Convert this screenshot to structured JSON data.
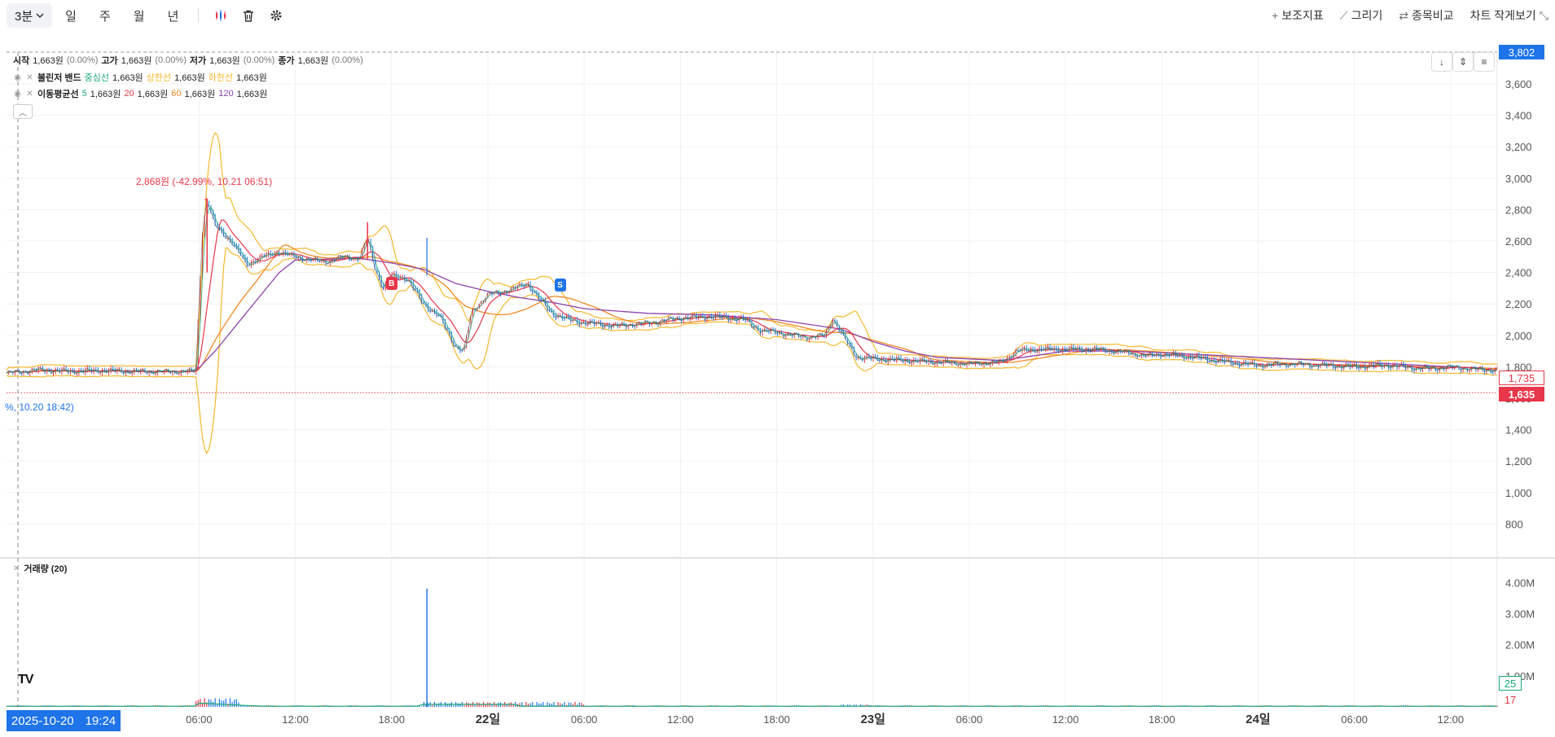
{
  "toolbar": {
    "interval": "3분",
    "periods": [
      "일",
      "주",
      "월",
      "년"
    ],
    "actions": [
      {
        "label": "보조지표",
        "glyph": "+"
      },
      {
        "label": "그리기",
        "glyph": "⟋"
      },
      {
        "label": "종목비교",
        "glyph": "⇄"
      },
      {
        "label": "차트 작게보기",
        "glyph": "⤡"
      }
    ]
  },
  "legend": {
    "ohlc": [
      {
        "k": "시작",
        "v": "1,663원",
        "p": "(0.00%)"
      },
      {
        "k": "고가",
        "v": "1,663원",
        "p": "(0.00%)"
      },
      {
        "k": "저가",
        "v": "1,663원",
        "p": "(0.00%)"
      },
      {
        "k": "종가",
        "v": "1,663원",
        "p": "(0.00%)"
      }
    ],
    "bollinger": {
      "name": "볼린저 밴드",
      "items": [
        {
          "k": "중심선",
          "v": "1,663원",
          "color": "#19a974"
        },
        {
          "k": "상한선",
          "v": "1,663원",
          "color": "#f5b82e"
        },
        {
          "k": "하한선",
          "v": "1,663원",
          "color": "#f5b82e"
        }
      ]
    },
    "ma": {
      "name": "이동평균선",
      "items": [
        {
          "k": "5",
          "v": "1,663원",
          "color": "#19a974"
        },
        {
          "k": "20",
          "v": "1,663원",
          "color": "#e8364a"
        },
        {
          "k": "60",
          "v": "1,663원",
          "color": "#f08a24"
        },
        {
          "k": "120",
          "v": "1,663원",
          "color": "#8e44ad"
        }
      ]
    }
  },
  "annotations": {
    "max_label": "2,868원 (-42.99%, 10.21 06:51)",
    "min_label": "%, 10.20 18:42)",
    "buy_tag": "B",
    "sell_tag": "S"
  },
  "volume_label": "거래량 (20)",
  "time_badge": {
    "date": "2025-10-20",
    "time": "19:24"
  },
  "logo_text": "TV",
  "colors": {
    "up": "#e8364a",
    "down": "#1e74e8",
    "bb": "#f5b82e",
    "ma5": "#19a974",
    "ma20": "#e8364a",
    "ma60": "#f08a24",
    "ma120": "#8e44ad",
    "vol_ma": "#19a974"
  },
  "chart_data": {
    "type": "line",
    "price_axis": {
      "ticks": [
        800,
        1000,
        1200,
        1400,
        1600,
        1800,
        2000,
        2200,
        2400,
        2600,
        2800,
        3000,
        3200,
        3400,
        3600
      ],
      "range": [
        600,
        3802
      ]
    },
    "volume_axis": {
      "ticks": [
        "1.00M",
        "2.00M",
        "3.00M",
        "4.00M"
      ],
      "range": [
        0,
        4.4
      ]
    },
    "x_axis": {
      "range": [
        "10.20 18:00",
        "10.24 15:00"
      ],
      "ticks": [
        {
          "t": 12,
          "label": "06:00",
          "bold": false
        },
        {
          "t": 18,
          "label": "12:00",
          "bold": false
        },
        {
          "t": 24,
          "label": "18:00",
          "bold": false
        },
        {
          "t": 30,
          "label": "22일",
          "bold": true
        },
        {
          "t": 36,
          "label": "06:00",
          "bold": false
        },
        {
          "t": 42,
          "label": "12:00",
          "bold": false
        },
        {
          "t": 48,
          "label": "18:00",
          "bold": false
        },
        {
          "t": 54,
          "label": "23일",
          "bold": true
        },
        {
          "t": 60,
          "label": "06:00",
          "bold": false
        },
        {
          "t": 66,
          "label": "12:00",
          "bold": false
        },
        {
          "t": 72,
          "label": "18:00",
          "bold": false
        },
        {
          "t": 78,
          "label": "24일",
          "bold": true
        },
        {
          "t": 84,
          "label": "06:00",
          "bold": false
        },
        {
          "t": 90,
          "label": "12:00",
          "bold": false
        }
      ]
    },
    "price_line": [
      [
        0,
        1760
      ],
      [
        1,
        1770
      ],
      [
        2,
        1780
      ],
      [
        4,
        1770
      ],
      [
        6,
        1775
      ],
      [
        8,
        1770
      ],
      [
        10,
        1770
      ],
      [
        11.8,
        1772
      ],
      [
        12.2,
        2650
      ],
      [
        12.5,
        2860
      ],
      [
        13,
        2700
      ],
      [
        14,
        2600
      ],
      [
        15,
        2450
      ],
      [
        16,
        2500
      ],
      [
        17,
        2530
      ],
      [
        18,
        2500
      ],
      [
        19,
        2480
      ],
      [
        20,
        2470
      ],
      [
        21,
        2500
      ],
      [
        22,
        2490
      ],
      [
        22.5,
        2620
      ],
      [
        23,
        2420
      ],
      [
        23.5,
        2300
      ],
      [
        24,
        2380
      ],
      [
        25,
        2360
      ],
      [
        26,
        2200
      ],
      [
        27,
        2120
      ],
      [
        28,
        1930
      ],
      [
        28.5,
        1900
      ],
      [
        29,
        2150
      ],
      [
        30,
        2260
      ],
      [
        31,
        2280
      ],
      [
        32,
        2310
      ],
      [
        32.5,
        2330
      ],
      [
        33,
        2260
      ],
      [
        34,
        2140
      ],
      [
        35,
        2100
      ],
      [
        36,
        2080
      ],
      [
        38,
        2060
      ],
      [
        40,
        2080
      ],
      [
        42,
        2110
      ],
      [
        44,
        2120
      ],
      [
        46,
        2100
      ],
      [
        47,
        2030
      ],
      [
        48,
        2020
      ],
      [
        49,
        2000
      ],
      [
        50,
        1990
      ],
      [
        51,
        2000
      ],
      [
        51.5,
        2110
      ],
      [
        52,
        2020
      ],
      [
        53,
        1860
      ],
      [
        54,
        1850
      ],
      [
        56,
        1840
      ],
      [
        58,
        1830
      ],
      [
        60,
        1820
      ],
      [
        62,
        1830
      ],
      [
        63,
        1900
      ],
      [
        64,
        1910
      ],
      [
        66,
        1910
      ],
      [
        68,
        1910
      ],
      [
        70,
        1890
      ],
      [
        71,
        1870
      ],
      [
        72,
        1880
      ],
      [
        74,
        1860
      ],
      [
        76,
        1830
      ],
      [
        78,
        1810
      ],
      [
        80,
        1820
      ],
      [
        82,
        1810
      ],
      [
        84,
        1800
      ],
      [
        86,
        1810
      ],
      [
        88,
        1790
      ],
      [
        89,
        1790
      ],
      [
        90,
        1800
      ],
      [
        92,
        1780
      ]
    ],
    "ma120": [
      [
        11.8,
        1772
      ],
      [
        13,
        1900
      ],
      [
        15,
        2150
      ],
      [
        17,
        2400
      ],
      [
        18,
        2480
      ],
      [
        20,
        2485
      ],
      [
        22,
        2490
      ],
      [
        24,
        2460
      ],
      [
        26,
        2420
      ],
      [
        28,
        2330
      ],
      [
        30,
        2280
      ],
      [
        32,
        2240
      ],
      [
        34,
        2210
      ],
      [
        36,
        2170
      ],
      [
        40,
        2140
      ],
      [
        44,
        2130
      ],
      [
        48,
        2100
      ],
      [
        52,
        2040
      ],
      [
        54,
        1960
      ],
      [
        56,
        1900
      ],
      [
        58,
        1860
      ],
      [
        62,
        1840
      ],
      [
        66,
        1900
      ],
      [
        70,
        1900
      ],
      [
        76,
        1870
      ],
      [
        80,
        1850
      ],
      [
        86,
        1820
      ],
      [
        92,
        1790
      ]
    ],
    "max_point": {
      "t": 12.5,
      "price": 2868,
      "label": "2,868원"
    },
    "buy_marker": {
      "t": 24,
      "price": 2380
    },
    "sell_marker": {
      "t": 34.5,
      "price": 2120
    },
    "current_price": {
      "value": 1635,
      "label": "1,635"
    },
    "prev_close": {
      "value": 1735,
      "label": "1,735"
    },
    "top_price": {
      "value": 3802,
      "label": "3,802"
    },
    "volume_spike": {
      "t": 26.2,
      "value": 3.8
    },
    "volume_ma_label": "25",
    "volume_last_label": "17"
  }
}
